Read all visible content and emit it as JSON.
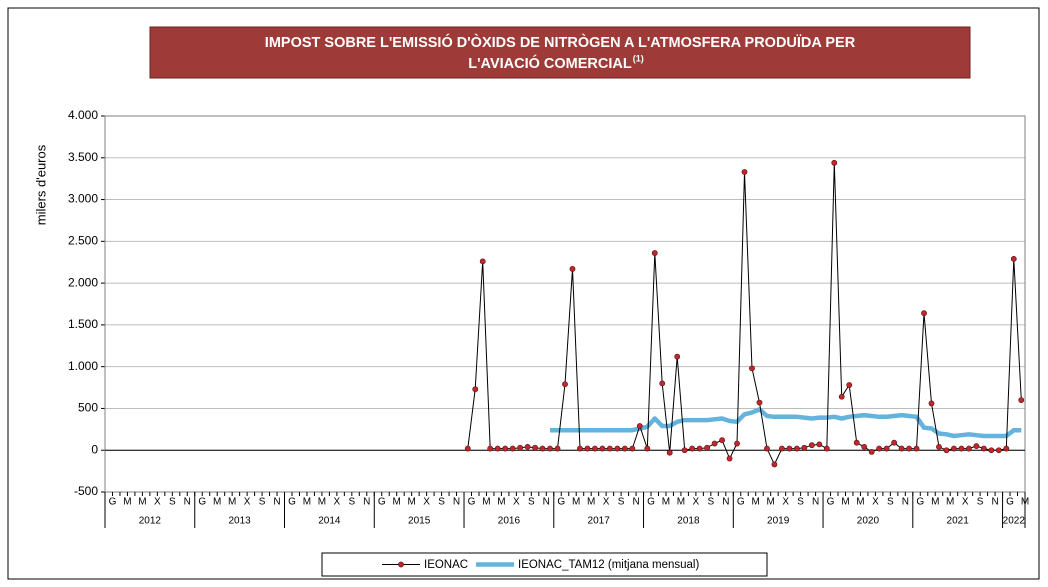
{
  "chart_data": {
    "type": "line",
    "title": [
      "IMPOST SOBRE L'EMISSIÓ D'ÒXIDS DE NITRÒGEN A L'ATMOSFERA PRODUÏDA PER",
      "L'AVIACIÓ COMERCIAL"
    ],
    "title_note": "(1)",
    "y_label": "milers d'euros",
    "categories": [
      "G",
      null,
      "M",
      null,
      "M",
      null,
      "X",
      null,
      "S",
      null,
      "N",
      null,
      "G",
      null,
      "M",
      null,
      "M",
      null,
      "X",
      null,
      "S",
      null,
      "N",
      null,
      "G",
      null,
      "M",
      null,
      "M",
      null,
      "X",
      null,
      "S",
      null,
      "N",
      null,
      "G",
      null,
      "M",
      null,
      "M",
      null,
      "X",
      null,
      "S",
      null,
      "N",
      null,
      "G",
      null,
      "M",
      null,
      "M",
      null,
      "X",
      null,
      "S",
      null,
      "N",
      null,
      "G",
      null,
      "M",
      null,
      "M",
      null,
      "X",
      null,
      "S",
      null,
      "N",
      null,
      "G",
      null,
      "M",
      null,
      "M",
      null,
      "X",
      null,
      "S",
      null,
      "N",
      null,
      "G",
      null,
      "M",
      null,
      "M",
      null,
      "X",
      null,
      "S",
      null,
      "N",
      null,
      "G",
      null,
      "M",
      null,
      "M",
      null,
      "X",
      null,
      "S",
      null,
      "N",
      null,
      "G",
      null,
      "M",
      null,
      "M",
      null,
      "X",
      null,
      "S",
      null,
      "N",
      null,
      "G",
      null,
      "M"
    ],
    "years": [
      "2012",
      "2013",
      "2014",
      "2015",
      "2016",
      "2017",
      "2018",
      "2019",
      "2020",
      "2021",
      "2022"
    ],
    "series": [
      {
        "name": "IEONAC",
        "color": "#000000",
        "marker_color": "#c0282d",
        "values": [
          null,
          null,
          null,
          null,
          null,
          null,
          null,
          null,
          null,
          null,
          null,
          null,
          null,
          null,
          null,
          null,
          null,
          null,
          null,
          null,
          null,
          null,
          null,
          null,
          null,
          null,
          null,
          null,
          null,
          null,
          null,
          null,
          null,
          null,
          null,
          null,
          null,
          null,
          null,
          null,
          null,
          null,
          null,
          null,
          null,
          null,
          null,
          null,
          20,
          730,
          2260,
          20,
          20,
          20,
          20,
          30,
          40,
          30,
          20,
          20,
          20,
          790,
          2170,
          20,
          20,
          20,
          20,
          20,
          20,
          20,
          20,
          290,
          20,
          2360,
          800,
          -30,
          1120,
          0,
          20,
          20,
          30,
          80,
          120,
          -100,
          80,
          3330,
          980,
          570,
          20,
          -170,
          20,
          20,
          20,
          30,
          60,
          70,
          20,
          3440,
          640,
          780,
          90,
          40,
          -20,
          20,
          20,
          90,
          20,
          20,
          20,
          1640,
          560,
          40,
          0,
          20,
          20,
          20,
          50,
          20,
          0,
          0,
          20,
          2290,
          600
        ]
      },
      {
        "name": "IEONAC_TAM12 (mitjana mensual)",
        "color": "#63b3dd",
        "values": [
          null,
          null,
          null,
          null,
          null,
          null,
          null,
          null,
          null,
          null,
          null,
          null,
          null,
          null,
          null,
          null,
          null,
          null,
          null,
          null,
          null,
          null,
          null,
          null,
          null,
          null,
          null,
          null,
          null,
          null,
          null,
          null,
          null,
          null,
          null,
          null,
          null,
          null,
          null,
          null,
          null,
          null,
          null,
          null,
          null,
          null,
          null,
          null,
          null,
          null,
          null,
          null,
          null,
          null,
          null,
          null,
          null,
          null,
          null,
          240,
          240,
          240,
          240,
          240,
          240,
          240,
          240,
          240,
          240,
          240,
          240,
          260,
          280,
          380,
          290,
          290,
          340,
          360,
          360,
          360,
          360,
          370,
          380,
          350,
          340,
          430,
          450,
          490,
          410,
          400,
          400,
          400,
          400,
          390,
          380,
          390,
          390,
          400,
          380,
          400,
          410,
          420,
          410,
          400,
          400,
          410,
          420,
          410,
          400,
          270,
          260,
          200,
          190,
          170,
          180,
          190,
          180,
          170,
          170,
          170,
          170,
          240,
          240
        ]
      }
    ],
    "ylim": [
      -500,
      4000
    ],
    "yticks": [
      -500,
      0,
      500,
      {
        "value": 1000,
        "label": "1.000"
      },
      {
        "value": 1500,
        "label": "1.500"
      },
      {
        "value": 2000,
        "label": "2.000"
      },
      {
        "value": 2500,
        "label": "2.500"
      },
      {
        "value": 3000,
        "label": "3.000"
      },
      {
        "value": 3500,
        "label": "3.500"
      },
      {
        "value": 4000,
        "label": "4.000"
      }
    ],
    "grid": true,
    "legend": "bottom"
  }
}
